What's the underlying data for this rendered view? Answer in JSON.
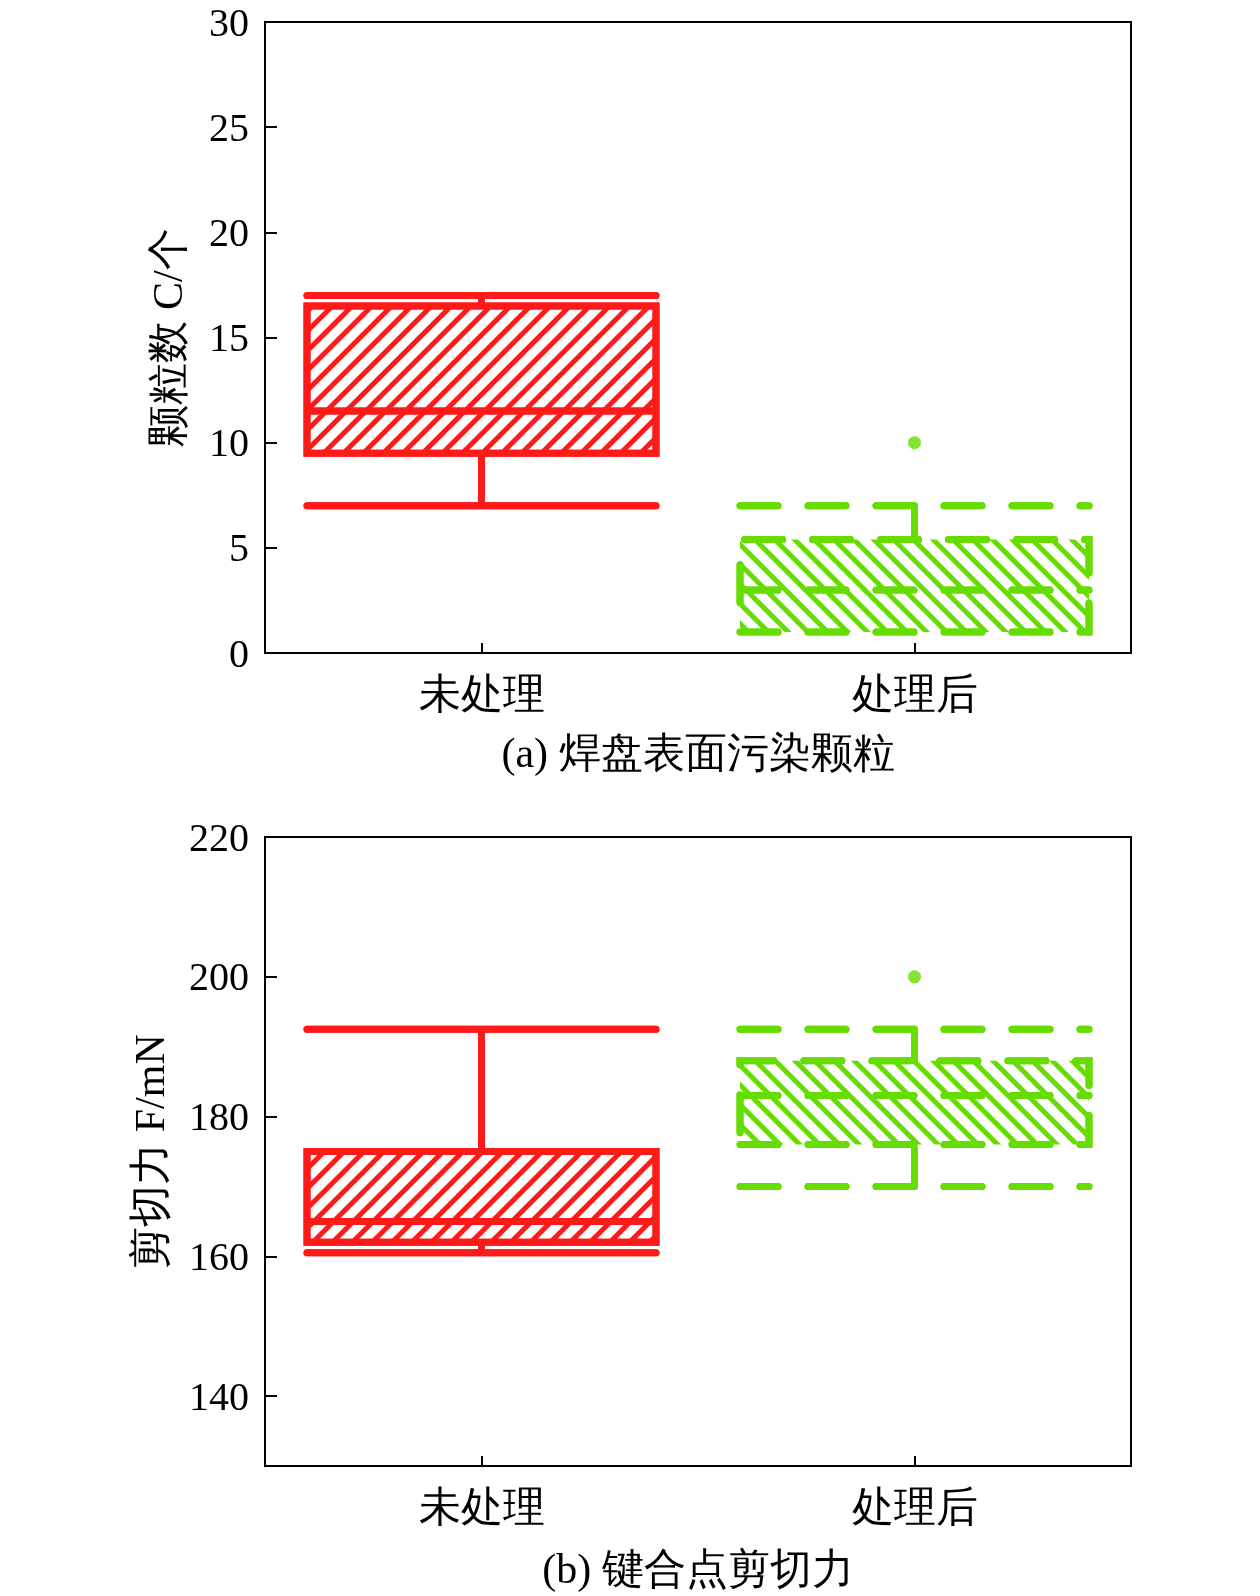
{
  "chart_data": [
    {
      "type": "box",
      "title": "(a) 焊盘表面污染颗粒",
      "ylabel": "颗粒数 C/个",
      "categories": [
        "未处理",
        "处理后"
      ],
      "ylim": [
        0,
        30
      ],
      "yticks": [
        0,
        5,
        10,
        15,
        20,
        25,
        30
      ],
      "series": [
        {
          "color": "#ff1a1a",
          "line_style": "solid",
          "boxes": [
            {
              "low": 7,
              "q1": 9.5,
              "median": 11.5,
              "q3": 16.5,
              "high": 17
            },
            null
          ]
        },
        {
          "color": "#66dd00",
          "line_style": "dashed",
          "boxes": [
            null,
            {
              "low": 1,
              "q1": 1,
              "median": 3,
              "q3": 5.4,
              "high": 7,
              "outliers": [
                10
              ]
            }
          ]
        }
      ]
    },
    {
      "type": "box",
      "title": "(b) 键合点剪切力",
      "ylabel": "剪切力 F/mN",
      "categories": [
        "未处理",
        "处理后"
      ],
      "ylim": [
        130,
        220
      ],
      "yticks": [
        140,
        160,
        180,
        200,
        220
      ],
      "series": [
        {
          "color": "#ff1a1a",
          "line_style": "solid",
          "boxes": [
            {
              "low": 160.5,
              "q1": 162,
              "median": 165,
              "q3": 175,
              "high": 192.5
            },
            null
          ]
        },
        {
          "color": "#66dd00",
          "line_style": "dashed",
          "boxes": [
            null,
            {
              "low": 170,
              "q1": 176,
              "median": 183,
              "q3": 188,
              "high": 192.5,
              "outliers": [
                200
              ]
            }
          ]
        }
      ]
    }
  ]
}
